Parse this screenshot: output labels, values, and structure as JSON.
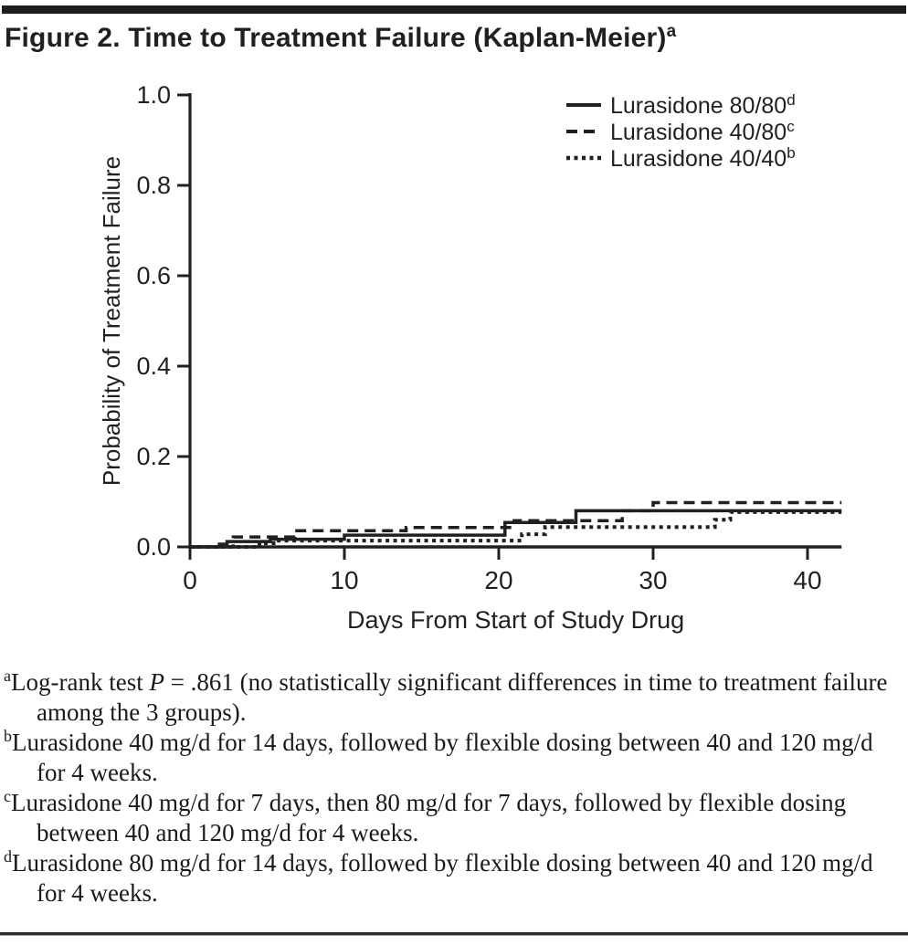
{
  "title": {
    "text": "Figure 2. Time to Treatment Failure (Kaplan-Meier)",
    "superscript": "a"
  },
  "chart_data": {
    "type": "line",
    "subtype": "kaplan-meier-step",
    "xlabel": "Days From Start of Study Drug",
    "ylabel": "Probability of Treatment Failure",
    "xlim": [
      0,
      42.2
    ],
    "ylim": [
      0,
      1.0
    ],
    "xticks": [
      0,
      10,
      20,
      30,
      40
    ],
    "ytick_labels": [
      "0.0",
      "0.2",
      "0.4",
      "0.6",
      "0.8",
      "1.0"
    ],
    "grid": false,
    "legend_position": "top-right-inside",
    "series": [
      {
        "name": "Lurasidone 40/40",
        "superscript": "b",
        "style": "dotted",
        "points": [
          [
            0,
            0
          ],
          [
            4.5,
            0.008
          ],
          [
            5.6,
            0.014
          ],
          [
            21.5,
            0.028
          ],
          [
            23,
            0.044
          ],
          [
            34,
            0.06
          ],
          [
            35,
            0.077
          ],
          [
            42.2,
            0.077
          ]
        ]
      },
      {
        "name": "Lurasidone 40/80",
        "superscript": "c",
        "style": "dashed",
        "points": [
          [
            0,
            0
          ],
          [
            2.8,
            0.022
          ],
          [
            6.8,
            0.036
          ],
          [
            14,
            0.043
          ],
          [
            21,
            0.058
          ],
          [
            28,
            0.08
          ],
          [
            30,
            0.098
          ],
          [
            42.2,
            0.098
          ]
        ]
      },
      {
        "name": "Lurasidone 80/80",
        "superscript": "d",
        "style": "solid",
        "points": [
          [
            0,
            0
          ],
          [
            1.9,
            0.006
          ],
          [
            2.4,
            0.012
          ],
          [
            5.2,
            0.017
          ],
          [
            10,
            0.026
          ],
          [
            20.4,
            0.054
          ],
          [
            25,
            0.08
          ],
          [
            42.2,
            0.08
          ]
        ]
      }
    ]
  },
  "footnotes": [
    {
      "sup": "a",
      "pre": "Log-rank test ",
      "italic": "P",
      "post": " = .861 (no statistically significant differences in time to treatment failure among the 3 groups)."
    },
    {
      "sup": "b",
      "pre": "Lurasidone 40 mg/d for 14 days, followed by flexible dosing between 40 and 120 mg/d for 4 weeks.",
      "italic": "",
      "post": ""
    },
    {
      "sup": "c",
      "pre": "Lurasidone 40 mg/d for 7 days, then 80 mg/d for 7 days, followed by flexible dosing between 40 and 120 mg/d for 4 weeks.",
      "italic": "",
      "post": ""
    },
    {
      "sup": "d",
      "pre": "Lurasidone 80 mg/d for 14 days, followed by flexible dosing between 40 and 120 mg/d for 4 weeks.",
      "italic": "",
      "post": ""
    }
  ],
  "colors": {
    "ink": "#231f20",
    "background": "#ffffff"
  }
}
